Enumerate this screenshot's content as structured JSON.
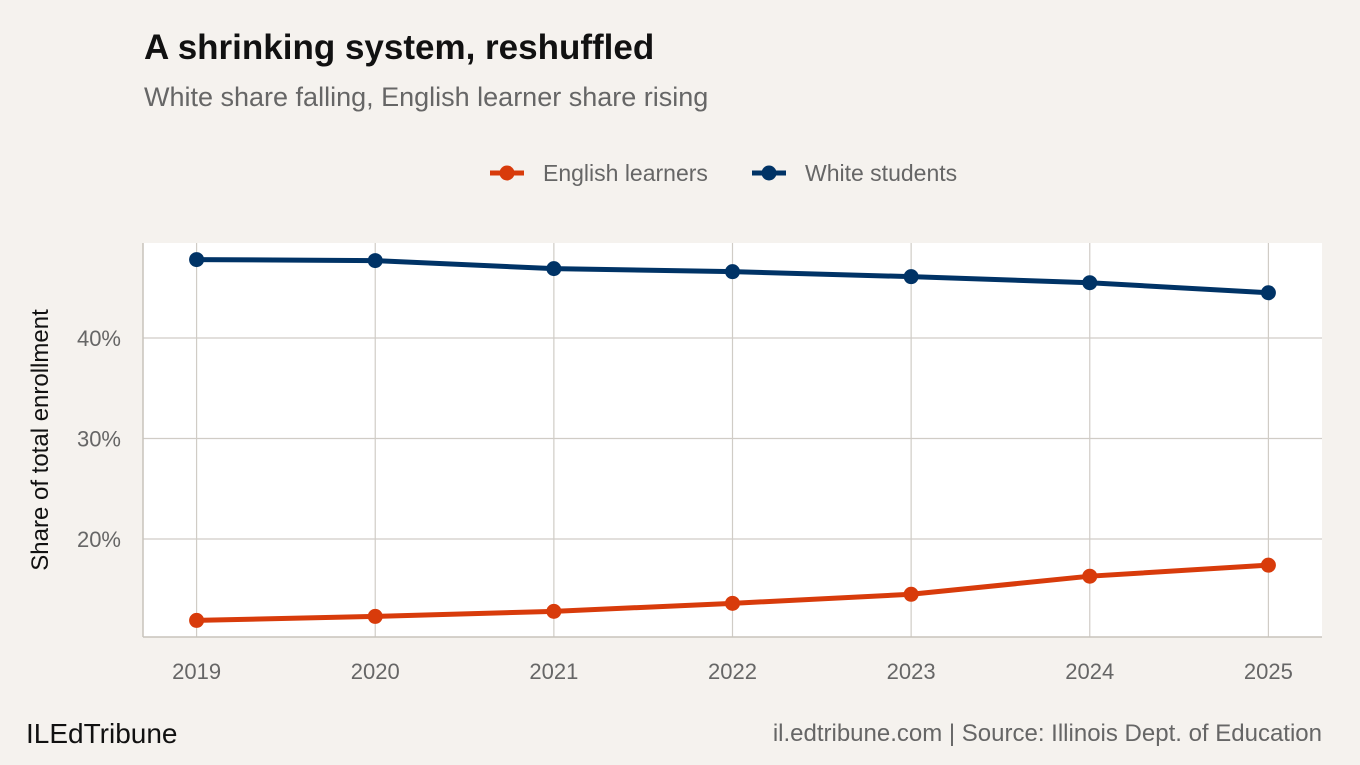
{
  "chart_data": {
    "type": "line",
    "title": "A shrinking system, reshuffled",
    "subtitle": "White share falling, English learner share rising",
    "xlabel": "",
    "ylabel": "Share of total enrollment",
    "x": [
      2019,
      2020,
      2021,
      2022,
      2023,
      2024,
      2025
    ],
    "x_tick_labels": [
      "2019",
      "2020",
      "2021",
      "2022",
      "2023",
      "2024",
      "2025"
    ],
    "y_ticks": [
      20,
      30,
      40
    ],
    "y_tick_labels": [
      "20%",
      "30%",
      "40%"
    ],
    "xlim": [
      2018.7,
      2025.3
    ],
    "ylim": [
      10.25,
      49.45
    ],
    "grid": true,
    "legend_position": "top",
    "series": [
      {
        "name": "English learners",
        "color": "#d83b0b",
        "values": [
          11.9,
          12.3,
          12.8,
          13.6,
          14.5,
          16.3,
          17.4
        ]
      },
      {
        "name": "White students",
        "color": "#003366",
        "values": [
          47.8,
          47.7,
          46.9,
          46.6,
          46.1,
          45.5,
          44.5
        ]
      }
    ]
  },
  "footer": {
    "brand": "ILEdTribune",
    "caption": "il.edtribune.com | Source: Illinois Dept. of Education"
  }
}
